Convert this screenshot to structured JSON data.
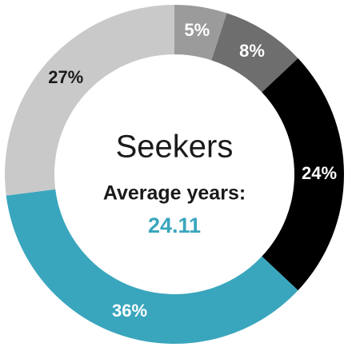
{
  "chart_data": {
    "type": "donut",
    "title": "Seekers",
    "subtitle": "Average years:",
    "center_value": 24.11,
    "center_color": "#3aa6bd",
    "start_angle": 0,
    "direction": "clockwise",
    "series": [
      {
        "name": null,
        "values": [
          5,
          8,
          24,
          36,
          27
        ],
        "value_labels": [
          "5%",
          "8%",
          "24%",
          "36%",
          "27%"
        ],
        "colors": [
          "#9b9b9b",
          "#6e6e6e",
          "#000000",
          "#3aa6bd",
          "#c9c9c9"
        ]
      }
    ]
  }
}
